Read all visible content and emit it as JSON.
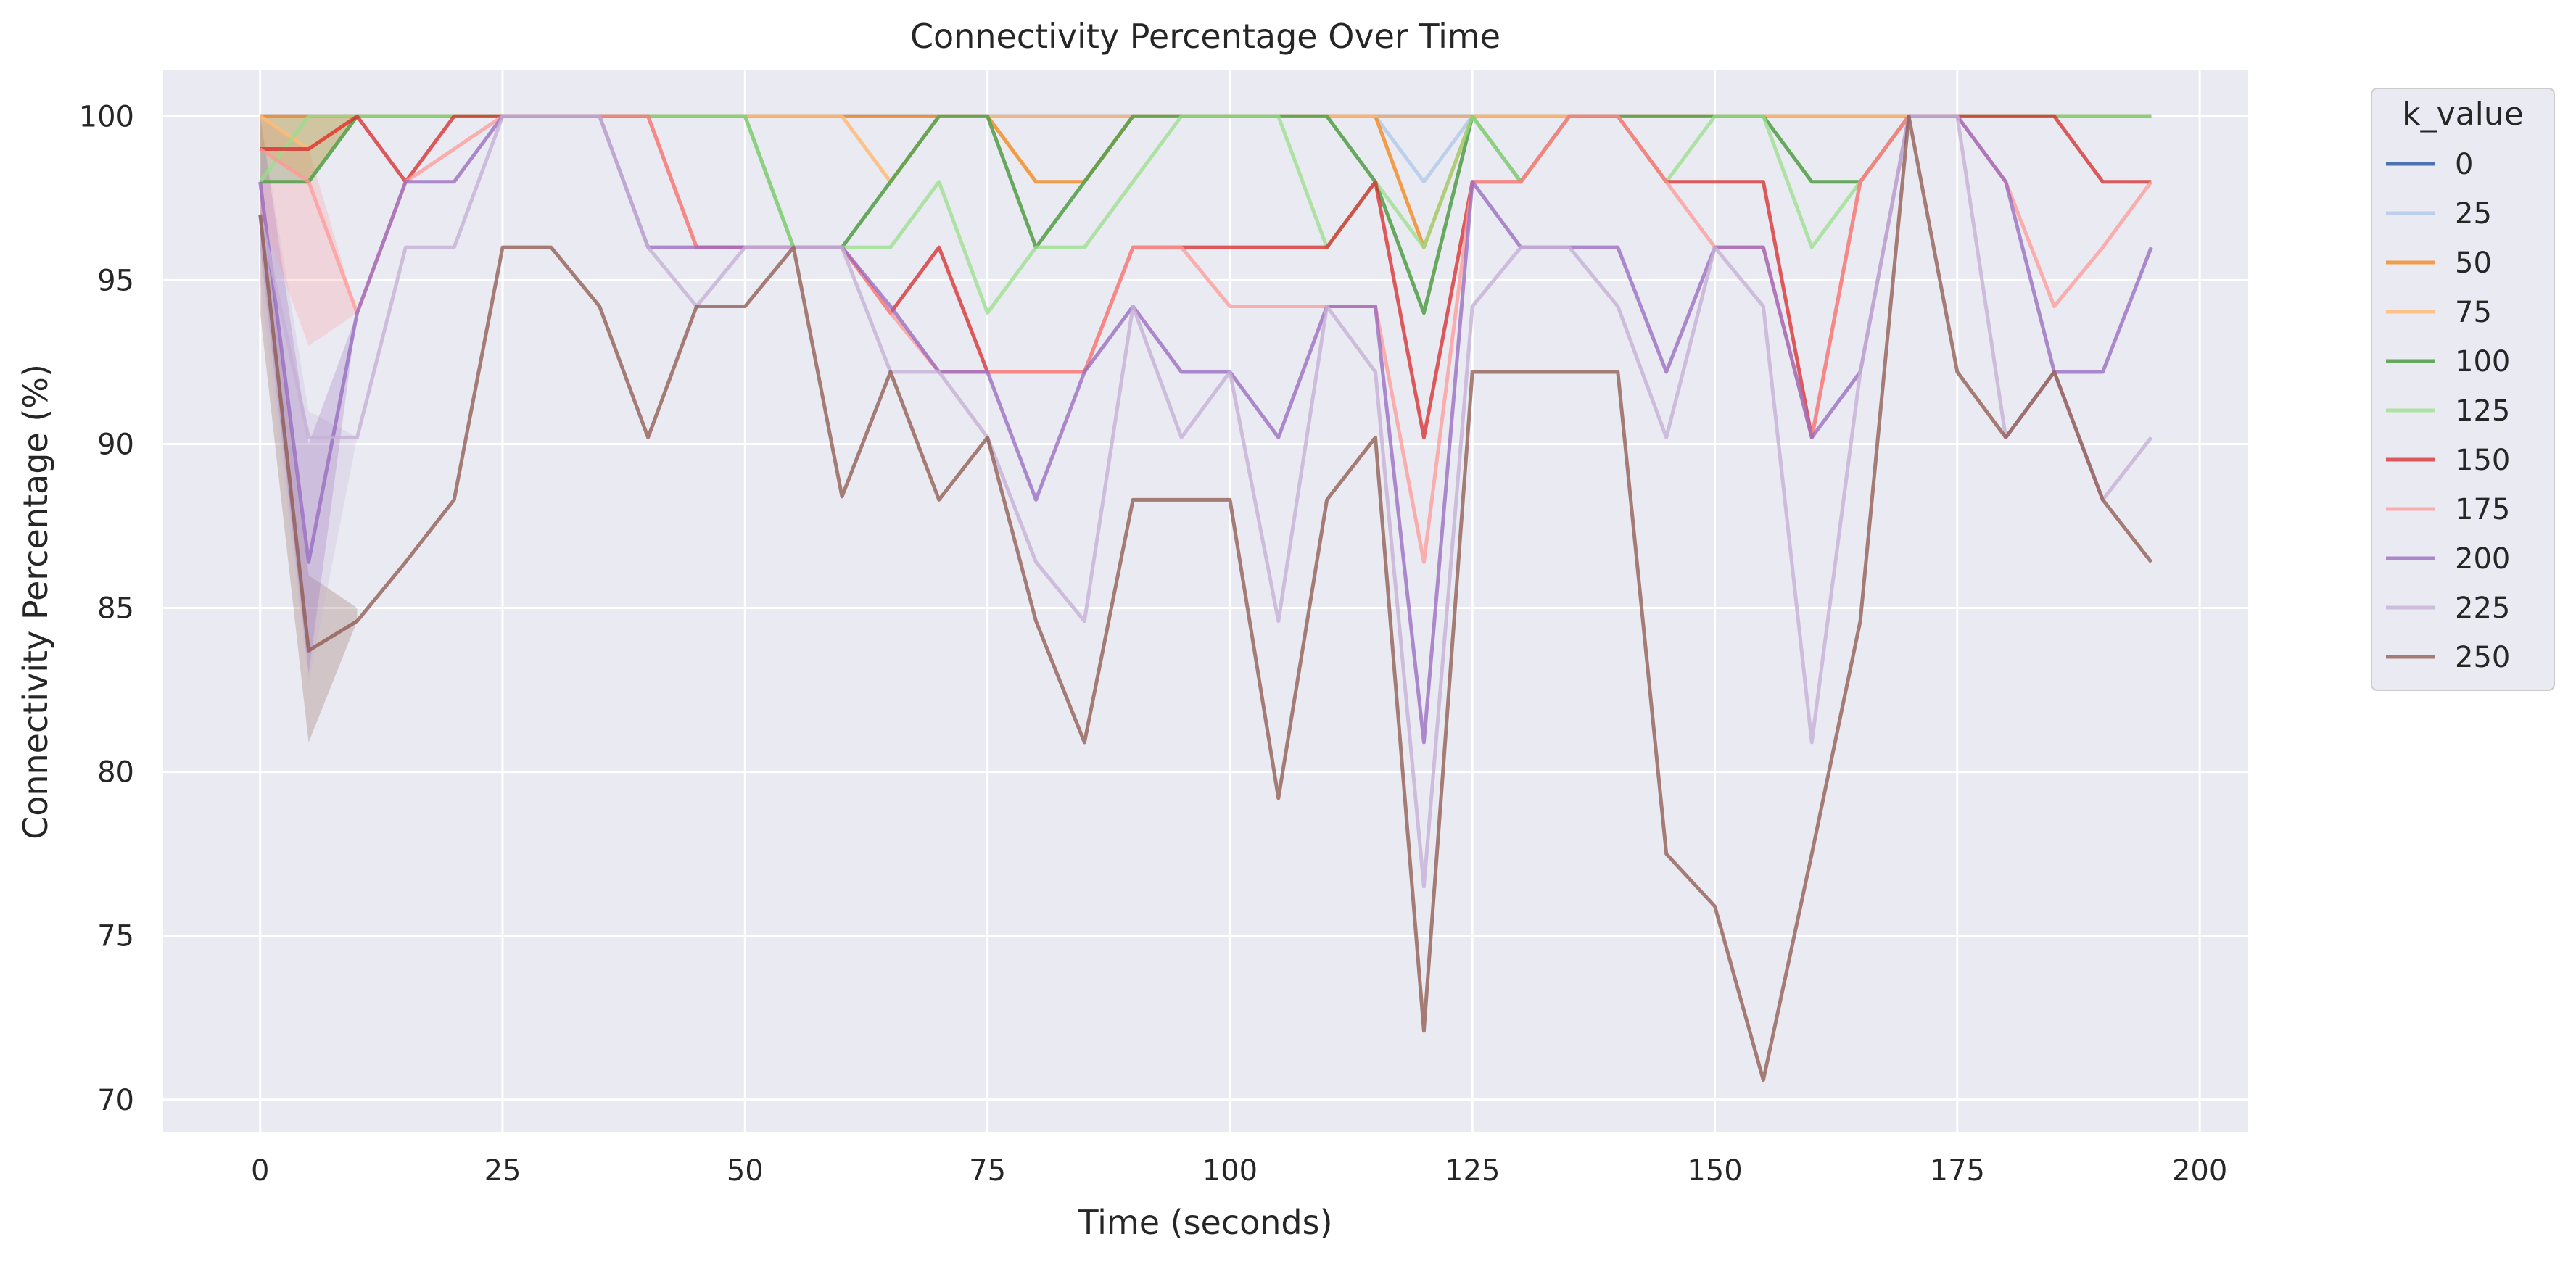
{
  "chart_data": {
    "type": "line",
    "title": "Connectivity Percentage Over Time",
    "xlabel": "Time (seconds)",
    "ylabel": "Connectivity Percentage (%)",
    "xlim": [
      -10,
      205
    ],
    "ylim": [
      69,
      101.4
    ],
    "xticks": [
      0,
      25,
      50,
      75,
      100,
      125,
      150,
      175,
      200
    ],
    "yticks": [
      70,
      75,
      80,
      85,
      90,
      95,
      100
    ],
    "grid": true,
    "background": "#EAEAF2",
    "legend": {
      "title": "k_value",
      "placement": "outside-right"
    },
    "x": [
      0,
      5,
      10,
      15,
      20,
      25,
      30,
      35,
      40,
      45,
      50,
      55,
      60,
      65,
      70,
      75,
      80,
      85,
      90,
      95,
      100,
      105,
      110,
      115,
      120,
      125,
      130,
      135,
      140,
      145,
      150,
      155,
      160,
      165,
      170,
      175,
      180,
      185,
      190,
      195
    ],
    "series": [
      {
        "name": "0",
        "color": "#4C72B0",
        "alpha": 1.0,
        "values": [
          100,
          100,
          100,
          100,
          100,
          100,
          100,
          100,
          100,
          100,
          100,
          100,
          100,
          100,
          100,
          100,
          100,
          100,
          100,
          100,
          100,
          100,
          100,
          100,
          100,
          100,
          100,
          100,
          100,
          100,
          100,
          100,
          100,
          100,
          100,
          100,
          100,
          100,
          100,
          100
        ]
      },
      {
        "name": "25",
        "color": "#AEC7E8",
        "alpha": 0.75,
        "values": [
          100,
          100,
          100,
          100,
          100,
          100,
          100,
          100,
          100,
          100,
          100,
          100,
          100,
          100,
          100,
          100,
          100,
          100,
          100,
          100,
          100,
          100,
          100,
          100,
          98,
          100,
          100,
          100,
          100,
          100,
          100,
          100,
          100,
          100,
          100,
          100,
          100,
          100,
          100,
          100
        ]
      },
      {
        "name": "50",
        "color": "#F28E2B",
        "alpha": 0.85,
        "values": [
          100,
          100,
          100,
          100,
          100,
          100,
          100,
          100,
          100,
          100,
          100,
          100,
          100,
          100,
          100,
          100,
          98,
          98,
          100,
          100,
          100,
          100,
          100,
          100,
          96,
          100,
          100,
          100,
          100,
          100,
          100,
          100,
          100,
          100,
          100,
          100,
          100,
          100,
          100,
          100
        ]
      },
      {
        "name": "75",
        "color": "#FFBB78",
        "alpha": 0.85,
        "values": [
          100,
          99,
          100,
          100,
          100,
          100,
          100,
          100,
          100,
          100,
          100,
          100,
          100,
          98,
          100,
          100,
          100,
          100,
          100,
          100,
          100,
          100,
          100,
          100,
          100,
          100,
          100,
          100,
          100,
          100,
          100,
          100,
          100,
          100,
          100,
          100,
          100,
          100,
          100,
          100
        ]
      },
      {
        "name": "100",
        "color": "#59A14F",
        "alpha": 0.9,
        "values": [
          98,
          98,
          100,
          100,
          100,
          100,
          100,
          100,
          100,
          100,
          100,
          96,
          96,
          98,
          100,
          100,
          96,
          98,
          100,
          100,
          100,
          100,
          100,
          98,
          94,
          100,
          98,
          100,
          100,
          100,
          100,
          100,
          98,
          98,
          100,
          100,
          100,
          100,
          100,
          100
        ]
      },
      {
        "name": "125",
        "color": "#98DF8A",
        "alpha": 0.75,
        "values": [
          98,
          100,
          100,
          100,
          100,
          100,
          100,
          100,
          100,
          100,
          100,
          96,
          96,
          96,
          98,
          94,
          96,
          96,
          98,
          100,
          100,
          100,
          96,
          98,
          96,
          100,
          98,
          100,
          100,
          98,
          100,
          100,
          96,
          98,
          100,
          100,
          100,
          100,
          100,
          100
        ]
      },
      {
        "name": "150",
        "color": "#D62728",
        "alpha": 0.75,
        "values": [
          99,
          99,
          100,
          98,
          100,
          100,
          100,
          100,
          100,
          96,
          96,
          96,
          96,
          94,
          96,
          92.2,
          92.2,
          92.2,
          96,
          96,
          96,
          96,
          96,
          98,
          90.2,
          98,
          98,
          100,
          100,
          98,
          98,
          98,
          90.2,
          98,
          100,
          100,
          100,
          100,
          98,
          98
        ]
      },
      {
        "name": "175",
        "color": "#FF9896",
        "alpha": 0.75,
        "values": [
          99,
          98,
          94,
          98,
          99,
          100,
          100,
          100,
          100,
          96,
          96,
          96,
          96,
          94,
          92.2,
          92.2,
          92.2,
          92.2,
          96,
          96,
          94.2,
          94.2,
          94.2,
          94.2,
          86.4,
          98,
          98,
          100,
          100,
          98,
          96,
          96,
          90.2,
          98,
          100,
          100,
          98,
          94.2,
          96,
          98
        ]
      },
      {
        "name": "200",
        "color": "#9467BD",
        "alpha": 0.75,
        "values": [
          98,
          86.4,
          94,
          98,
          98,
          100,
          100,
          100,
          96,
          96,
          96,
          96,
          96,
          94.2,
          92.2,
          92.2,
          88.3,
          92.2,
          94.2,
          92.2,
          92.2,
          90.2,
          94.2,
          94.2,
          80.9,
          98,
          96,
          96,
          96,
          92.2,
          96,
          96,
          90.2,
          92.2,
          100,
          100,
          98,
          92.2,
          92.2,
          96
        ]
      },
      {
        "name": "225",
        "color": "#C5B0D5",
        "alpha": 0.8,
        "values": [
          97,
          90.2,
          90.2,
          96,
          96,
          100,
          100,
          100,
          96,
          94.2,
          96,
          96,
          96,
          92.2,
          92.2,
          90.2,
          86.4,
          84.6,
          94.2,
          90.2,
          92.2,
          84.6,
          94.2,
          92.2,
          76.5,
          94.2,
          96,
          96,
          94.2,
          90.2,
          96,
          94.2,
          80.9,
          92.2,
          100,
          100,
          90.2,
          92.2,
          88.3,
          90.2
        ]
      },
      {
        "name": "250",
        "color": "#8C564B",
        "alpha": 0.75,
        "values": [
          97,
          83.7,
          84.6,
          86.4,
          88.3,
          96,
          96,
          94.2,
          90.2,
          94.2,
          94.2,
          96,
          88.4,
          92.2,
          88.3,
          90.2,
          84.6,
          80.9,
          88.3,
          88.3,
          88.3,
          79.2,
          88.3,
          90.2,
          72.1,
          92.2,
          92.2,
          92.2,
          92.2,
          77.5,
          75.9,
          70.6,
          77.5,
          84.6,
          100,
          92.2,
          90.2,
          92.2,
          88.3,
          86.4
        ]
      }
    ],
    "confidence_bands": [
      {
        "series": "250",
        "color": "#8C564B",
        "x": [
          0,
          5,
          10
        ],
        "upper": [
          98,
          86,
          85
        ],
        "lower": [
          94,
          80.9,
          84.6
        ]
      },
      {
        "series": "225",
        "color": "#C5B0D5",
        "x": [
          0,
          5,
          10
        ],
        "upper": [
          100,
          91,
          90.2
        ],
        "lower": [
          95,
          82.7,
          90.2
        ]
      },
      {
        "series": "200",
        "color": "#9467BD",
        "x": [
          0,
          5,
          10
        ],
        "upper": [
          100,
          90,
          94
        ],
        "lower": [
          96,
          83,
          94
        ]
      },
      {
        "series": "175",
        "color": "#FF9896",
        "x": [
          0,
          5,
          10
        ],
        "upper": [
          100,
          99,
          94
        ],
        "lower": [
          97,
          93,
          94
        ]
      },
      {
        "series": "100",
        "color": "#59A14F",
        "x": [
          0,
          5,
          10
        ],
        "upper": [
          100,
          100,
          100
        ],
        "lower": [
          98,
          98,
          100
        ]
      },
      {
        "series": "50",
        "color": "#F28E2B",
        "x": [
          0,
          5,
          10
        ],
        "upper": [
          100,
          100,
          100
        ],
        "lower": [
          99,
          98,
          100
        ]
      }
    ]
  }
}
